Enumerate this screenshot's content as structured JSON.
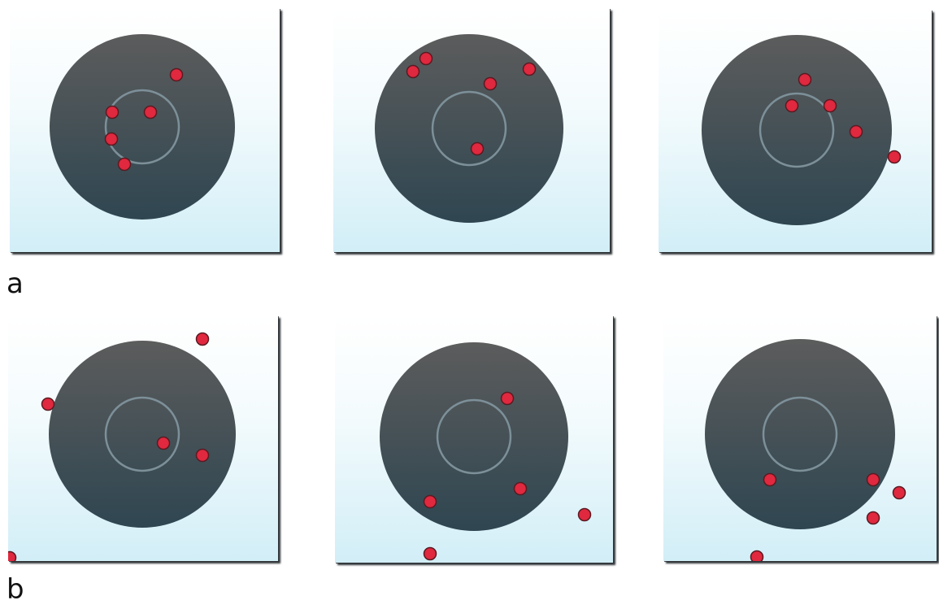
{
  "rows": [
    {
      "label": "a"
    },
    {
      "label": "b"
    }
  ],
  "colors": {
    "disc_top": "#5a5a5a",
    "disc_bottom": "#2f4550",
    "ring": "#7d9099",
    "dot_fill": "#e0283e",
    "dot_stroke": "#5a1a22",
    "panel_bottom": "#d2eef7"
  }
}
